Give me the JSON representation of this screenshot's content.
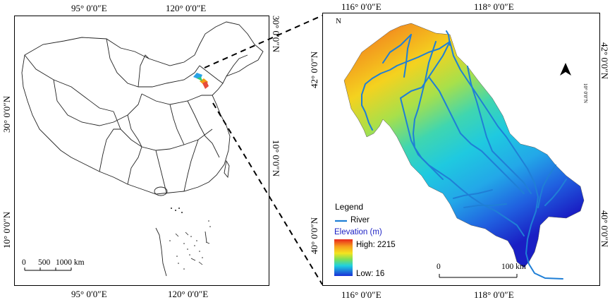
{
  "left_map": {
    "top_lon_labels": [
      "95° 0′0″E",
      "120° 0′0″E"
    ],
    "bottom_lon_labels": [
      "95° 0′0″E",
      "120° 0′0″E"
    ],
    "left_lat_labels": [
      "30° 0′0″N",
      "10° 0′0″N"
    ],
    "right_lat_labels": [
      "30° 0′0″N",
      "10° 0′0″N"
    ],
    "scale_bar": {
      "ticks": [
        "0",
        "500",
        "1000 km"
      ]
    }
  },
  "right_map": {
    "top_lon_labels": [
      "116° 0′0″E",
      "118° 0′0″E"
    ],
    "bottom_lon_labels": [
      "116° 0′0″E",
      "118° 0′0″E"
    ],
    "left_lat_labels": [
      "42° 0′0″N",
      "40° 0′0″N"
    ],
    "right_lat_labels": [
      "42° 0′0″N",
      "40° 0′0″N"
    ],
    "right_small_label": "10° 0′0″N",
    "corner_label": "N",
    "north_arrow": "north-arrow-icon",
    "scale_bar": {
      "ticks": [
        "0",
        "100 km"
      ]
    },
    "legend": {
      "title": "Legend",
      "river_label": "River",
      "elevation_title": "Elevation (m)",
      "high_label": "High: 2215",
      "low_label": "Low: 16",
      "river_color": "#1f7fd6"
    }
  }
}
